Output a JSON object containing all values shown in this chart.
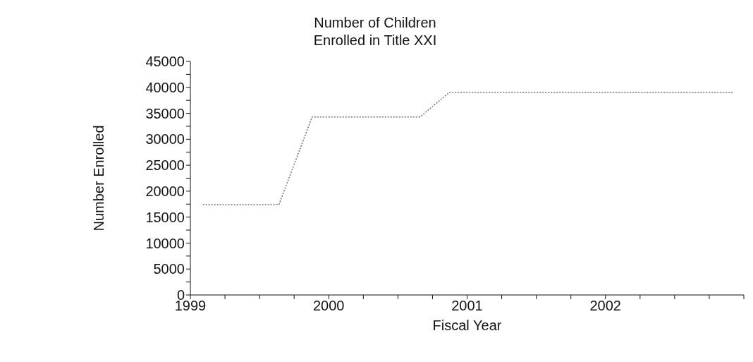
{
  "chart_data": {
    "type": "line",
    "title": "Number of Children\nEnrolled in Title XXI",
    "xlabel": "Fiscal Year",
    "ylabel": "Number Enrolled",
    "x": [
      1999.09,
      1999.64,
      1999.88,
      2000.66,
      2000.87,
      2002.93
    ],
    "values": [
      17400,
      17400,
      34300,
      34300,
      39000,
      39000
    ],
    "color": "#707070",
    "line_style": "dotted",
    "marker": "none",
    "xlim": [
      1999,
      2003
    ],
    "xticks": [
      {
        "value": 1999,
        "label": "1999"
      },
      {
        "value": 1999.25,
        "label": null
      },
      {
        "value": 1999.5,
        "label": null
      },
      {
        "value": 1999.75,
        "label": null
      },
      {
        "value": 2000,
        "label": "2000"
      },
      {
        "value": 2000.25,
        "label": null
      },
      {
        "value": 2000.5,
        "label": null
      },
      {
        "value": 2000.75,
        "label": null
      },
      {
        "value": 2001,
        "label": "2001"
      },
      {
        "value": 2001.25,
        "label": null
      },
      {
        "value": 2001.5,
        "label": null
      },
      {
        "value": 2001.75,
        "label": null
      },
      {
        "value": 2002,
        "label": "2002"
      },
      {
        "value": 2002.25,
        "label": null
      },
      {
        "value": 2002.5,
        "label": null
      },
      {
        "value": 2002.75,
        "label": null
      },
      {
        "value": 2003,
        "label": null
      }
    ],
    "ylim": [
      0,
      45000
    ],
    "yticks": [
      0,
      {
        "value": 2500,
        "label": null
      },
      5000,
      {
        "value": 7500,
        "label": null
      },
      10000,
      {
        "value": 12500,
        "label": null
      },
      15000,
      {
        "value": 17500,
        "label": null
      },
      20000,
      {
        "value": 22500,
        "label": null
      },
      25000,
      {
        "value": 27500,
        "label": null
      },
      30000,
      {
        "value": 32500,
        "label": null
      },
      35000,
      {
        "value": 37500,
        "label": null
      },
      40000,
      {
        "value": 42500,
        "label": null
      },
      45000
    ],
    "grid": false,
    "legend": false
  }
}
